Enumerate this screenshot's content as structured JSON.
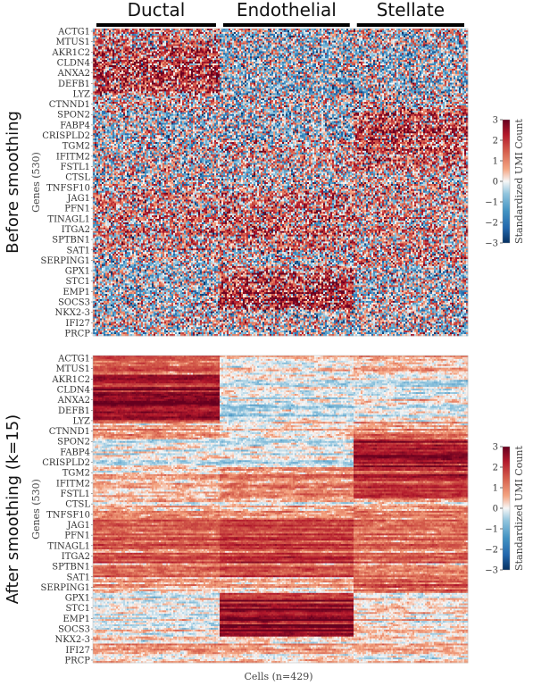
{
  "chart_data": {
    "type": "heatmap",
    "groups": [
      {
        "name": "Ductal",
        "cell_start": 0,
        "cell_end": 145
      },
      {
        "name": "Endothelial",
        "cell_start": 145,
        "cell_end": 298
      },
      {
        "name": "Stellate",
        "cell_start": 298,
        "cell_end": 429
      }
    ],
    "n_cells": 429,
    "n_genes": 530,
    "xlabel": "Cells (n=429)",
    "ylabel": "Genes (530)",
    "gene_labels": [
      "ACTG1",
      "MTUS1",
      "AKR1C2",
      "CLDN4",
      "ANXA2",
      "DEFB1",
      "LYZ",
      "CTNND1",
      "SPON2",
      "FABP4",
      "CRISPLD2",
      "TGM2",
      "IFITM2",
      "FSTL1",
      "CTSL",
      "TNFSF10",
      "JAG1",
      "PFN1",
      "TINAGL1",
      "ITGA2",
      "SPTBN1",
      "SAT1",
      "SERPING1",
      "GPX1",
      "STC1",
      "EMP1",
      "SOCS3",
      "NKX2-3",
      "IFI27",
      "PRCP"
    ],
    "colorbar": {
      "label": "Standardized UMI Count",
      "range": [
        -3,
        3
      ],
      "ticks": [
        "3",
        "2",
        "1",
        "0",
        "−1",
        "−2",
        "−3"
      ],
      "colormap": "RdBu_r",
      "low_color": "#053061",
      "mid_color": "#f7f7f7",
      "high_color": "#67001f"
    },
    "panels": [
      {
        "title": "Before smoothing",
        "smoothing_k": 0
      },
      {
        "title": "After smoothing (k=15)",
        "smoothing_k": 15
      }
    ]
  }
}
